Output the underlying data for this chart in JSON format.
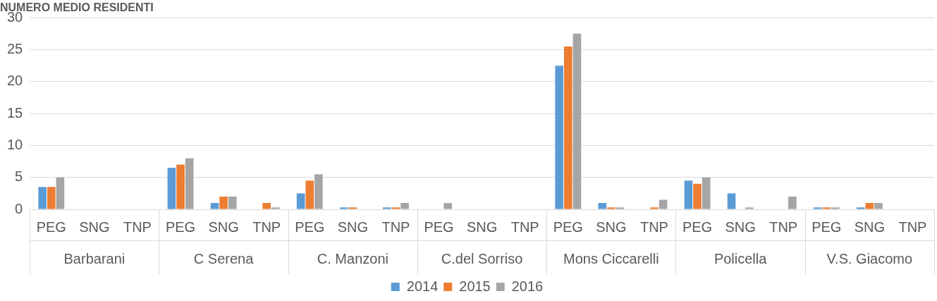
{
  "chart_data": {
    "type": "bar",
    "title": "NUMERO MEDIO RESIDENTI",
    "categories": [
      "PEG",
      "SNG",
      "TNP",
      "PEG",
      "SNG",
      "TNP",
      "PEG",
      "SNG",
      "TNP",
      "PEG",
      "SNG",
      "TNP",
      "PEG",
      "SNG",
      "TNP",
      "PEG",
      "SNG",
      "TNP",
      "PEG",
      "SNG",
      "TNP"
    ],
    "annotations": [
      "Barbarani",
      "C Serena",
      "C. Manzoni",
      "C.del Sorriso",
      "Mons Ciccarelli",
      "Policella",
      "V.S. Giacomo"
    ],
    "series": [
      {
        "name": "2014",
        "color": "#5b9bd5",
        "values": [
          3.5,
          0,
          0,
          6.5,
          1,
          0,
          2.5,
          0.3,
          0.3,
          0,
          0,
          0,
          22.5,
          1,
          0,
          4.5,
          2.5,
          0,
          0.3,
          0.3,
          0
        ]
      },
      {
        "name": "2015",
        "color": "#ed7d31",
        "values": [
          3.5,
          0,
          0,
          7,
          2,
          1,
          4.5,
          0.3,
          0.3,
          0,
          0,
          0,
          25.5,
          0.3,
          0.3,
          4,
          0,
          0,
          0.3,
          1,
          0
        ]
      },
      {
        "name": "2016",
        "color": "#a5a5a5",
        "values": [
          5,
          0,
          0,
          8,
          2,
          0.3,
          5.5,
          0,
          1,
          1,
          0,
          0,
          27.5,
          0.3,
          1.5,
          5,
          0.3,
          2,
          0.3,
          1,
          0
        ]
      }
    ],
    "ylim": [
      0,
      30
    ],
    "yticks": [
      0,
      5,
      10,
      15,
      20,
      25,
      30
    ],
    "grid": "y",
    "legend": "bottom"
  }
}
